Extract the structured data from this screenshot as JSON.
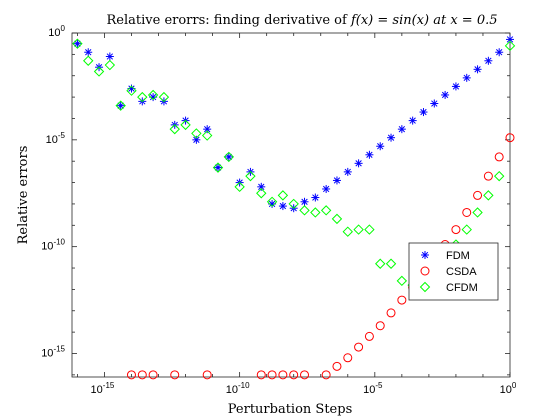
{
  "chart_data": {
    "type": "scatter",
    "title": "Relative erorrs: finding derivative of f(x) = sin(x) at x = 0.5",
    "xlabel": "Perturbation Steps",
    "ylabel": "Relative errors",
    "xscale": "log",
    "yscale": "log",
    "xlim_exp": [
      -16.2,
      0
    ],
    "ylim_exp": [
      -16.1,
      0
    ],
    "x_ticks": [
      {
        "exp": -15,
        "label": "10^-15"
      },
      {
        "exp": -10,
        "label": "10^-10"
      },
      {
        "exp": -5,
        "label": "10^-5"
      },
      {
        "exp": 0,
        "label": "10^0"
      }
    ],
    "y_ticks": [
      {
        "exp": 0,
        "label": "10^0"
      },
      {
        "exp": -5,
        "label": "10^-5"
      },
      {
        "exp": -10,
        "label": "10^-10"
      },
      {
        "exp": -15,
        "label": "10^-15"
      }
    ],
    "grid": false,
    "legend_position": "right",
    "series": [
      {
        "name": "FDM",
        "marker": "star",
        "color": "#0000ff",
        "x_exp": [
          -16.0,
          -15.6,
          -15.2,
          -14.8,
          -14.4,
          -14.0,
          -13.6,
          -13.2,
          -12.8,
          -12.4,
          -12.0,
          -11.6,
          -11.2,
          -10.8,
          -10.4,
          -10.0,
          -9.6,
          -9.2,
          -8.8,
          -8.4,
          -8.0,
          -7.6,
          -7.2,
          -6.8,
          -6.4,
          -6.0,
          -5.6,
          -5.2,
          -4.8,
          -4.4,
          -4.0,
          -3.6,
          -3.2,
          -2.8,
          -2.4,
          -2.0,
          -1.6,
          -1.2,
          -0.8,
          -0.4,
          0.0
        ],
        "y_exp": [
          -0.5,
          -0.9,
          -1.6,
          -1.1,
          -3.4,
          -2.6,
          -3.2,
          -3.0,
          -3.2,
          -4.3,
          -4.1,
          -5.0,
          -4.5,
          -6.3,
          -5.8,
          -7.0,
          -6.5,
          -7.2,
          -8.0,
          -8.1,
          -8.2,
          -7.9,
          -7.7,
          -7.3,
          -6.9,
          -6.5,
          -6.1,
          -5.7,
          -5.3,
          -4.9,
          -4.5,
          -4.1,
          -3.7,
          -3.3,
          -2.9,
          -2.5,
          -2.1,
          -1.7,
          -1.3,
          -0.9,
          -0.3
        ]
      },
      {
        "name": "CSDA",
        "marker": "circle",
        "color": "#ff0000",
        "x_exp": [
          -14.0,
          -13.6,
          -13.2,
          -12.4,
          -11.2,
          -9.2,
          -8.8,
          -8.4,
          -8.0,
          -7.6,
          -6.8,
          -6.4,
          -6.0,
          -5.6,
          -5.2,
          -4.8,
          -4.4,
          -4.0,
          -3.6,
          -3.2,
          -2.8,
          -2.4,
          -2.0,
          -1.6,
          -1.2,
          -0.8,
          -0.4,
          0.0
        ],
        "y_exp": [
          -16.0,
          -16.0,
          -16.0,
          -16.0,
          -16.0,
          -16.0,
          -16.0,
          -16.0,
          -16.0,
          -16.0,
          -16.0,
          -15.6,
          -15.2,
          -14.7,
          -14.2,
          -13.7,
          -13.1,
          -12.5,
          -11.9,
          -11.2,
          -10.6,
          -9.9,
          -9.2,
          -8.4,
          -7.6,
          -6.7,
          -5.8,
          -4.9
        ]
      },
      {
        "name": "CFDM",
        "marker": "diamond",
        "color": "#00ff00",
        "x_exp": [
          -16.0,
          -15.6,
          -15.2,
          -14.8,
          -14.4,
          -14.0,
          -13.6,
          -13.2,
          -12.8,
          -12.4,
          -12.0,
          -11.6,
          -11.2,
          -10.8,
          -10.4,
          -10.0,
          -9.6,
          -9.2,
          -8.8,
          -8.4,
          -8.0,
          -7.6,
          -7.2,
          -6.8,
          -6.4,
          -6.0,
          -5.6,
          -5.2,
          -4.8,
          -4.4,
          -4.0,
          -3.6,
          -3.2,
          -2.8,
          -2.4,
          -2.0,
          -1.6,
          -1.2,
          -0.8,
          -0.4,
          0.0
        ],
        "y_exp": [
          -0.5,
          -1.3,
          -1.8,
          -1.5,
          -3.4,
          -2.7,
          -3.0,
          -2.9,
          -3.0,
          -4.5,
          -4.3,
          -4.7,
          -4.8,
          -6.3,
          -5.8,
          -7.2,
          -6.7,
          -7.5,
          -7.9,
          -7.6,
          -8.0,
          -8.3,
          -8.4,
          -8.3,
          -8.7,
          -9.3,
          -9.2,
          -9.2,
          -10.8,
          -10.8,
          -11.6,
          -11.8,
          -11.6,
          -11.2,
          -10.6,
          -9.9,
          -9.2,
          -8.4,
          -7.6,
          -6.7,
          -0.6
        ]
      }
    ]
  }
}
